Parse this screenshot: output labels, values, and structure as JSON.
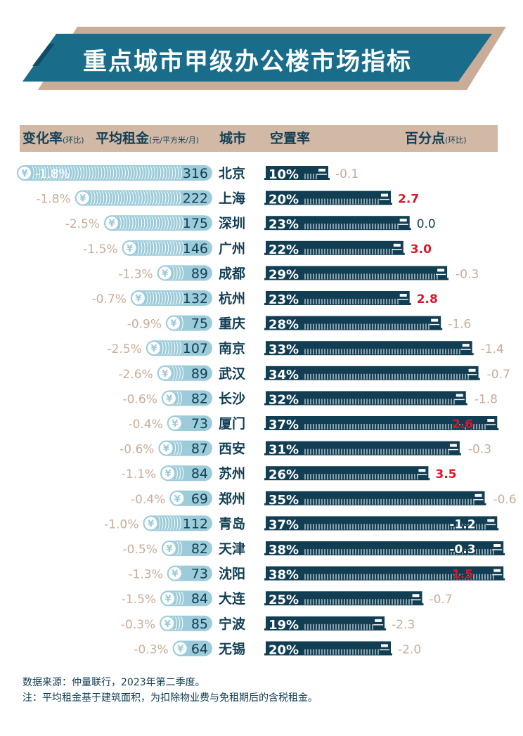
{
  "title": "重点城市甲级办公楼市场指标",
  "header": {
    "change_rate": "变化率",
    "change_rate_note": "(环比)",
    "avg_rent": "平均租金",
    "avg_rent_note": "(元/平方米/月)",
    "city": "城市",
    "vacancy": "空置率",
    "pct_point": "百分点",
    "pct_point_note": "(环比)"
  },
  "colors": {
    "navy": "#123e54",
    "light_blue": "#9ccbd9",
    "tan": "#c9ad98",
    "red": "#e0142b",
    "banner": "#1a6d8a"
  },
  "chart_data": {
    "type": "bar",
    "title": "重点城市甲级办公楼市场指标",
    "categories": [
      "北京",
      "上海",
      "深圳",
      "广州",
      "成都",
      "杭州",
      "重庆",
      "南京",
      "武汉",
      "长沙",
      "厦门",
      "西安",
      "苏州",
      "郑州",
      "青岛",
      "天津",
      "沈阳",
      "大连",
      "宁波",
      "无锡"
    ],
    "series": [
      {
        "name": "平均租金(元/平方米/月)",
        "values": [
          316,
          222,
          175,
          146,
          89,
          132,
          75,
          107,
          89,
          82,
          73,
          87,
          84,
          69,
          112,
          82,
          73,
          84,
          85,
          64
        ]
      },
      {
        "name": "变化率(环比)",
        "labels": [
          "-1.8%",
          "-1.8%",
          "-2.5%",
          "-1.5%",
          "-1.3%",
          "-0.7%",
          "-0.9%",
          "-2.5%",
          "-2.6%",
          "-0.6%",
          "-0.4%",
          "-0.6%",
          "-1.1%",
          "-0.4%",
          "-1.0%",
          "-0.5%",
          "-1.3%",
          "-1.5%",
          "-0.3%",
          "-0.3%"
        ]
      },
      {
        "name": "空置率",
        "values": [
          10,
          20,
          23,
          22,
          29,
          23,
          28,
          33,
          34,
          32,
          37,
          31,
          26,
          35,
          37,
          38,
          38,
          25,
          19,
          20
        ],
        "labels": [
          "10%",
          "20%",
          "23%",
          "22%",
          "29%",
          "23%",
          "28%",
          "33%",
          "34%",
          "32%",
          "37%",
          "31%",
          "26%",
          "35%",
          "37%",
          "38%",
          "38%",
          "25%",
          "19%",
          "20%"
        ]
      },
      {
        "name": "百分点(环比)",
        "values": [
          -0.1,
          2.7,
          0.0,
          3.0,
          -0.3,
          2.8,
          -1.6,
          -1.4,
          -0.7,
          -1.8,
          2.6,
          -0.3,
          3.5,
          -0.6,
          -1.2,
          -0.3,
          1.5,
          -0.7,
          -2.3,
          -2.0
        ],
        "labels": [
          "-0.1",
          "2.7",
          "0.0",
          "3.0",
          "-0.3",
          "2.8",
          "-1.6",
          "-1.4",
          "-0.7",
          "-1.8",
          "2.6",
          "-0.3",
          "3.5",
          "-0.6",
          "-1.2",
          "-0.3",
          "1.5",
          "-0.7",
          "-2.3",
          "-2.0"
        ]
      }
    ],
    "currency_symbol": "¥"
  },
  "footnotes": [
    "数据来源：仲量联行，2023年第二季度。",
    "注：平均租金基于建筑面积，为扣除物业费与免租期后的含税租金。"
  ]
}
